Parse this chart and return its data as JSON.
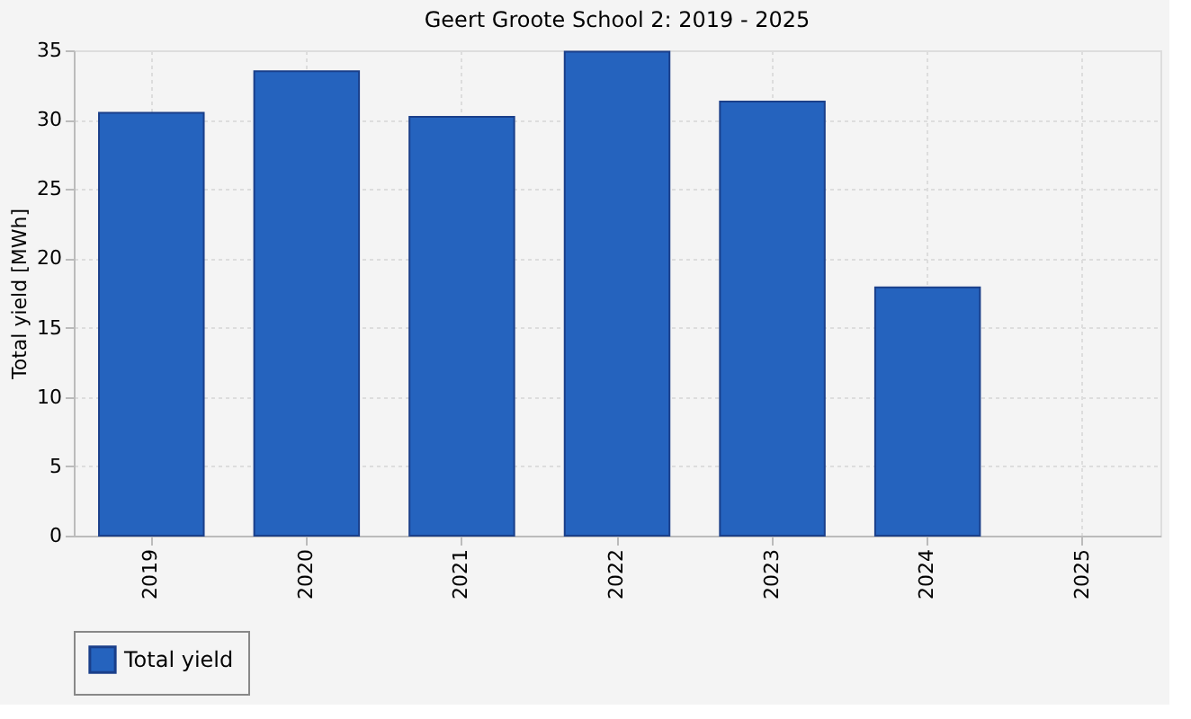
{
  "chart_data": {
    "type": "bar",
    "title": "Geert Groote School 2: 2019 - 2025",
    "ylabel": "Total yield [MWh]",
    "categories": [
      "2019",
      "2020",
      "2021",
      "2022",
      "2023",
      "2024",
      "2025"
    ],
    "series": [
      {
        "name": "Total yield",
        "color": "#2563be",
        "values": [
          30.5,
          33.5,
          30.2,
          34.9,
          31.3,
          17.9,
          null
        ]
      }
    ],
    "ylim": [
      0,
      35
    ],
    "yticks": [
      0,
      5,
      10,
      15,
      20,
      25,
      30,
      35
    ],
    "grid": true,
    "legend": "bottom"
  }
}
